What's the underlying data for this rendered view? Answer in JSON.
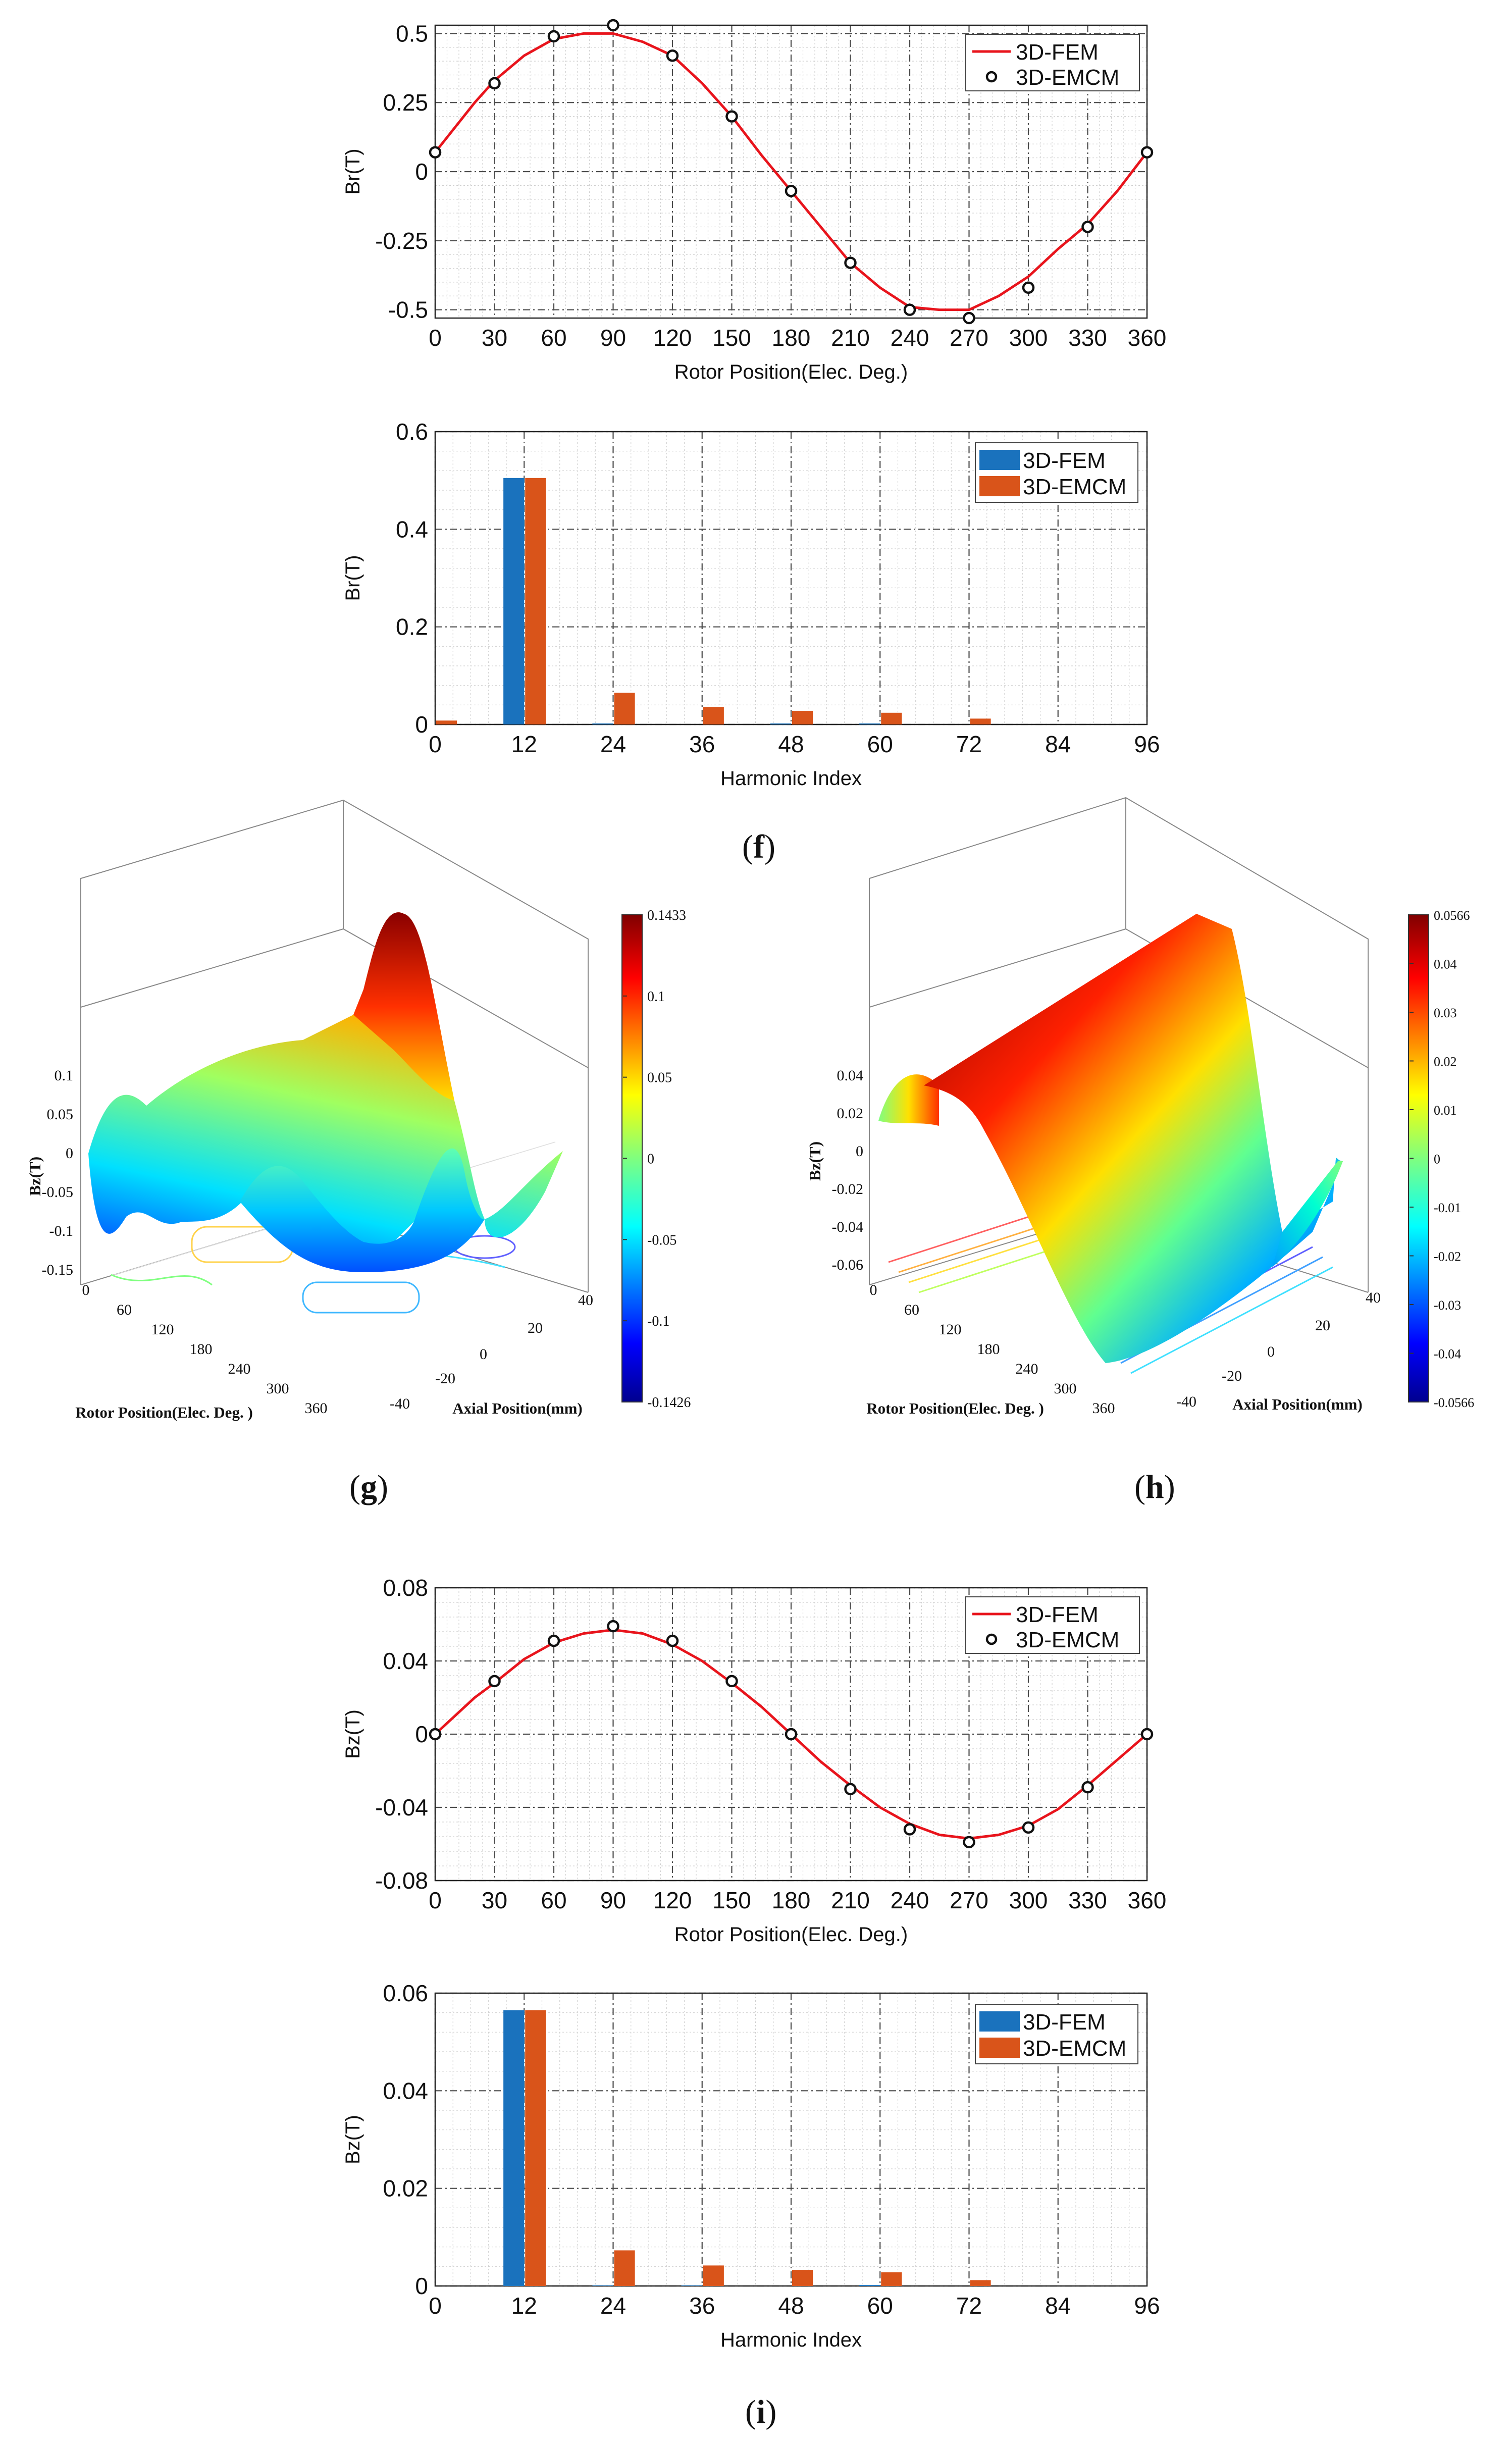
{
  "panel_labels": {
    "f": "f",
    "g": "g",
    "h": "h",
    "i": "i"
  },
  "colors": {
    "fem_line": "#e8141c",
    "fem_bar": "#1a72bd",
    "emcm_bar": "#d9541a",
    "grid": "#4a4a4a",
    "minor_grid": "#cfcfcf"
  },
  "chart_data": [
    {
      "id": "f-top",
      "type": "line",
      "xlabel": "Rotor Position(Elec. Deg.)",
      "ylabel": "Br(T)",
      "xlim": [
        0,
        360
      ],
      "ylim": [
        -0.53,
        0.53
      ],
      "xticks": [
        0,
        30,
        60,
        90,
        120,
        150,
        180,
        210,
        240,
        270,
        300,
        330,
        360
      ],
      "yticks": [
        0.5,
        0.25,
        0,
        -0.25,
        -0.5
      ],
      "ytick_labels": [
        "0.5",
        "0.25",
        "0",
        "-0.25",
        "-0.5"
      ],
      "legend": [
        "3D-FEM",
        "3D-EMCM"
      ],
      "series": [
        {
          "name": "3D-FEM",
          "x": [
            0,
            10,
            20,
            30,
            45,
            60,
            75,
            90,
            105,
            120,
            135,
            150,
            165,
            180,
            195,
            210,
            225,
            240,
            255,
            270,
            285,
            300,
            315,
            330,
            345,
            360
          ],
          "values": [
            0.07,
            0.16,
            0.25,
            0.33,
            0.42,
            0.48,
            0.5,
            0.5,
            0.47,
            0.42,
            0.32,
            0.2,
            0.06,
            -0.07,
            -0.2,
            -0.33,
            -0.42,
            -0.49,
            -0.5,
            -0.5,
            -0.45,
            -0.38,
            -0.28,
            -0.19,
            -0.07,
            0.07
          ]
        },
        {
          "name": "3D-EMCM",
          "x": [
            0,
            30,
            60,
            90,
            120,
            150,
            180,
            210,
            240,
            270,
            300,
            330,
            360
          ],
          "values": [
            0.07,
            0.32,
            0.49,
            0.53,
            0.42,
            0.2,
            -0.07,
            -0.33,
            -0.5,
            -0.53,
            -0.42,
            -0.2,
            0.07
          ]
        }
      ]
    },
    {
      "id": "f-bottom",
      "type": "bar",
      "xlabel": "Harmonic Index",
      "ylabel": "Br(T)",
      "xlim": [
        0,
        96
      ],
      "ylim": [
        0,
        0.6
      ],
      "xticks": [
        0,
        12,
        24,
        36,
        48,
        60,
        72,
        84,
        96
      ],
      "yticks": [
        0.6,
        0.4,
        0.2,
        0
      ],
      "ytick_labels": [
        "0.6",
        "0.4",
        "0.2",
        "0"
      ],
      "legend": [
        "3D-FEM",
        "3D-EMCM"
      ],
      "categories": [
        0,
        12,
        24,
        36,
        48,
        60,
        72
      ],
      "series": [
        {
          "name": "3D-FEM",
          "values": [
            0.0,
            0.505,
            0.002,
            0.0,
            0.002,
            0.002,
            0.0
          ]
        },
        {
          "name": "3D-EMCM",
          "values": [
            0.008,
            0.505,
            0.065,
            0.036,
            0.028,
            0.024,
            0.012
          ]
        }
      ]
    },
    {
      "id": "g",
      "type": "surface",
      "zlabel": "Bz(T)",
      "xlabel": "Rotor Position(Elec. Deg. )",
      "ylabel": "Axial Position(mm)",
      "zticks": [
        "0.1",
        "0.05",
        "0",
        "-0.05",
        "-0.1",
        "-0.15"
      ],
      "xticks": [
        "0",
        "60",
        "120",
        "180",
        "240",
        "300",
        "360"
      ],
      "yticks": [
        "40",
        "20",
        "0",
        "-20",
        "-40"
      ],
      "colorbar_ticks": [
        "0.1433",
        "0.1",
        "0.05",
        "0",
        "-0.05",
        "-0.1",
        "-0.1426"
      ]
    },
    {
      "id": "h",
      "type": "surface",
      "zlabel": "Bz(T)",
      "xlabel": "Rotor Position(Elec. Deg. )",
      "ylabel": "Axial Position(mm)",
      "zticks": [
        "0.04",
        "0.02",
        "0",
        "-0.02",
        "-0.04",
        "-0.06"
      ],
      "xticks": [
        "0",
        "60",
        "120",
        "180",
        "240",
        "300",
        "360"
      ],
      "yticks": [
        "40",
        "20",
        "0",
        "-20",
        "-40"
      ],
      "colorbar_ticks": [
        "0.0566",
        "0.04",
        "0.03",
        "0.02",
        "0.01",
        "0",
        "-0.01",
        "-0.02",
        "-0.03",
        "-0.04",
        "-0.0566"
      ]
    },
    {
      "id": "i-top",
      "type": "line",
      "xlabel": "Rotor Position(Elec. Deg.)",
      "ylabel": "Bz(T)",
      "xlim": [
        0,
        360
      ],
      "ylim": [
        -0.08,
        0.08
      ],
      "xticks": [
        0,
        30,
        60,
        90,
        120,
        150,
        180,
        210,
        240,
        270,
        300,
        330,
        360
      ],
      "yticks": [
        0.08,
        0.04,
        0,
        -0.04,
        -0.08
      ],
      "ytick_labels": [
        "0.08",
        "0.04",
        "0",
        "-0.04",
        "-0.08"
      ],
      "legend": [
        "3D-FEM",
        "3D-EMCM"
      ],
      "series": [
        {
          "name": "3D-FEM",
          "x": [
            0,
            10,
            20,
            30,
            45,
            60,
            75,
            90,
            105,
            120,
            135,
            150,
            165,
            180,
            195,
            210,
            225,
            240,
            255,
            270,
            285,
            300,
            315,
            330,
            345,
            360
          ],
          "values": [
            0,
            0.01,
            0.02,
            0.028,
            0.041,
            0.05,
            0.055,
            0.057,
            0.055,
            0.049,
            0.04,
            0.028,
            0.015,
            0,
            -0.015,
            -0.028,
            -0.04,
            -0.049,
            -0.055,
            -0.057,
            -0.055,
            -0.05,
            -0.041,
            -0.028,
            -0.014,
            0
          ]
        },
        {
          "name": "3D-EMCM",
          "x": [
            0,
            30,
            60,
            90,
            120,
            150,
            180,
            210,
            240,
            270,
            300,
            330,
            360
          ],
          "values": [
            0,
            0.029,
            0.051,
            0.059,
            0.051,
            0.029,
            0,
            -0.03,
            -0.052,
            -0.059,
            -0.051,
            -0.029,
            0
          ]
        }
      ]
    },
    {
      "id": "i-bottom",
      "type": "bar",
      "xlabel": "Harmonic Index",
      "ylabel": "Bz(T)",
      "xlim": [
        0,
        96
      ],
      "ylim": [
        0,
        0.06
      ],
      "xticks": [
        0,
        12,
        24,
        36,
        48,
        60,
        72,
        84,
        96
      ],
      "yticks": [
        0.06,
        0.04,
        0.02,
        0
      ],
      "ytick_labels": [
        "0.06",
        "0.04",
        "0.02",
        "0"
      ],
      "legend": [
        "3D-FEM",
        "3D-EMCM"
      ],
      "categories": [
        0,
        12,
        24,
        36,
        48,
        60,
        72
      ],
      "series": [
        {
          "name": "3D-FEM",
          "values": [
            0.0,
            0.0565,
            0.0001,
            0.0001,
            0.0,
            0.0002,
            0.0
          ]
        },
        {
          "name": "3D-EMCM",
          "values": [
            0.0,
            0.0565,
            0.0073,
            0.0042,
            0.0033,
            0.0028,
            0.0012
          ]
        }
      ]
    }
  ]
}
